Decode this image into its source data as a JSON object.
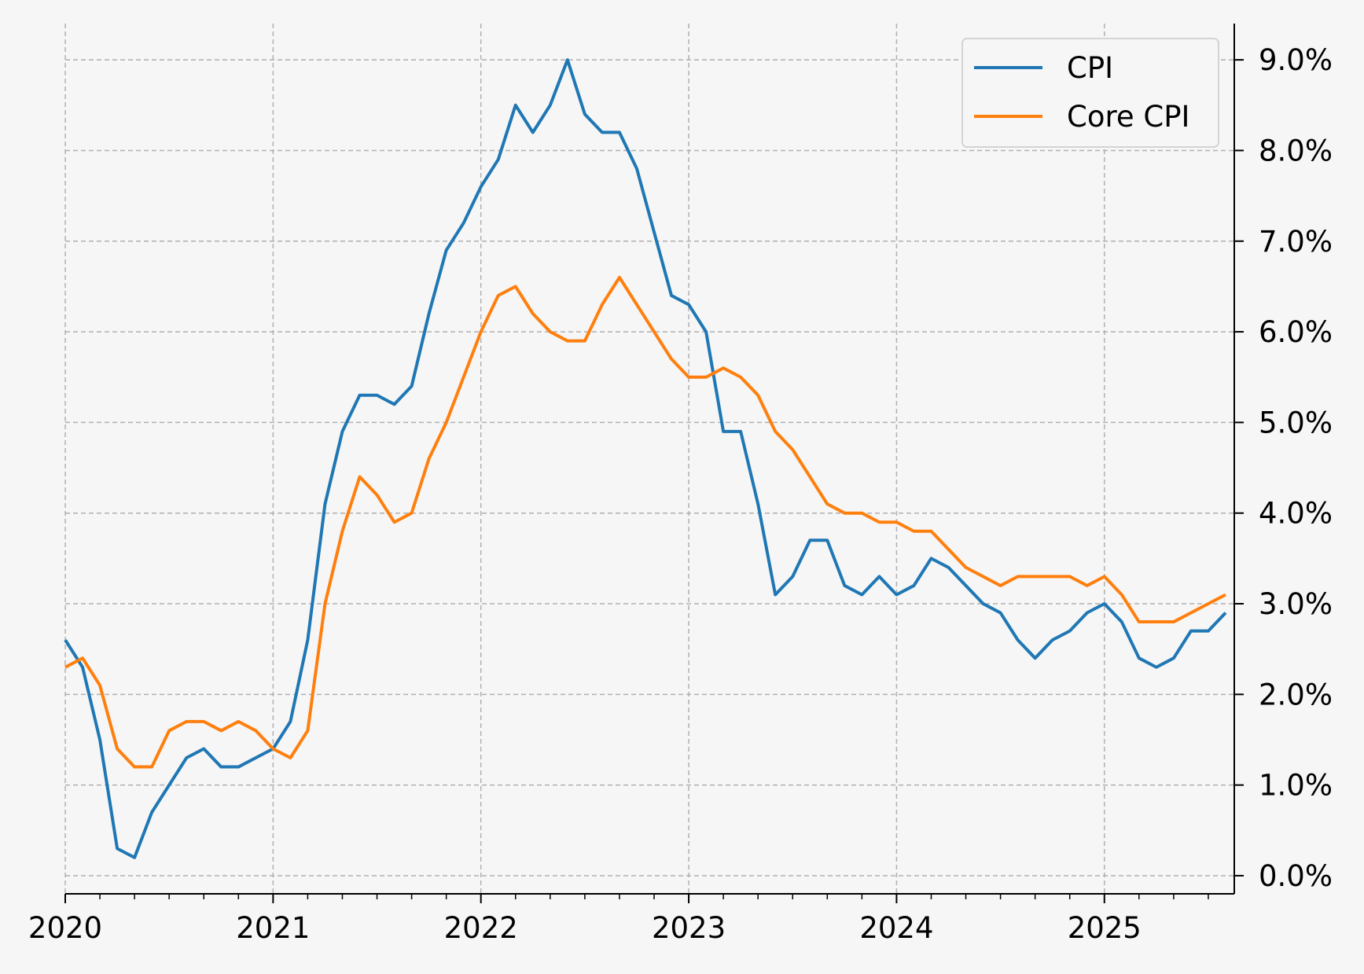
{
  "chart_data": {
    "type": "line",
    "title": "",
    "xlabel": "",
    "ylabel": "",
    "x_start": "2020-01",
    "x_end": "2025-08",
    "x_ticks": [
      "2020",
      "2021",
      "2022",
      "2023",
      "2024",
      "2025"
    ],
    "ylim": [
      -0.2,
      9.4
    ],
    "y_ticks": [
      "0.0%",
      "1.0%",
      "2.0%",
      "3.0%",
      "4.0%",
      "5.0%",
      "6.0%",
      "7.0%",
      "8.0%",
      "9.0%"
    ],
    "y_axis_side": "right",
    "grid": true,
    "legend_position": "top-right",
    "series": [
      {
        "name": "CPI",
        "color": "#1f77b4",
        "values": [
          2.6,
          2.3,
          1.5,
          0.3,
          0.2,
          0.7,
          1.0,
          1.3,
          1.4,
          1.2,
          1.2,
          1.3,
          1.4,
          1.7,
          2.6,
          4.1,
          4.9,
          5.3,
          5.3,
          5.2,
          5.4,
          6.2,
          6.9,
          7.2,
          7.6,
          7.9,
          8.5,
          8.2,
          8.5,
          9.0,
          8.4,
          8.2,
          8.2,
          7.8,
          7.1,
          6.4,
          6.3,
          6.0,
          4.9,
          4.9,
          4.1,
          3.1,
          3.3,
          3.7,
          3.7,
          3.2,
          3.1,
          3.3,
          3.1,
          3.2,
          3.5,
          3.4,
          3.2,
          3.0,
          2.9,
          2.6,
          2.4,
          2.6,
          2.7,
          2.9,
          3.0,
          2.8,
          2.4,
          2.3,
          2.4,
          2.7,
          2.7,
          2.9
        ]
      },
      {
        "name": "Core CPI",
        "color": "#ff7f0e",
        "values": [
          2.3,
          2.4,
          2.1,
          1.4,
          1.2,
          1.2,
          1.6,
          1.7,
          1.7,
          1.6,
          1.7,
          1.6,
          1.4,
          1.3,
          1.6,
          3.0,
          3.8,
          4.4,
          4.2,
          3.9,
          4.0,
          4.6,
          5.0,
          5.5,
          6.0,
          6.4,
          6.5,
          6.2,
          6.0,
          5.9,
          5.9,
          6.3,
          6.6,
          6.3,
          6.0,
          5.7,
          5.5,
          5.5,
          5.6,
          5.5,
          5.3,
          4.9,
          4.7,
          4.4,
          4.1,
          4.0,
          4.0,
          3.9,
          3.9,
          3.8,
          3.8,
          3.6,
          3.4,
          3.3,
          3.2,
          3.3,
          3.3,
          3.3,
          3.3,
          3.2,
          3.3,
          3.1,
          2.8,
          2.8,
          2.8,
          2.9,
          3.0,
          3.1
        ]
      }
    ]
  }
}
